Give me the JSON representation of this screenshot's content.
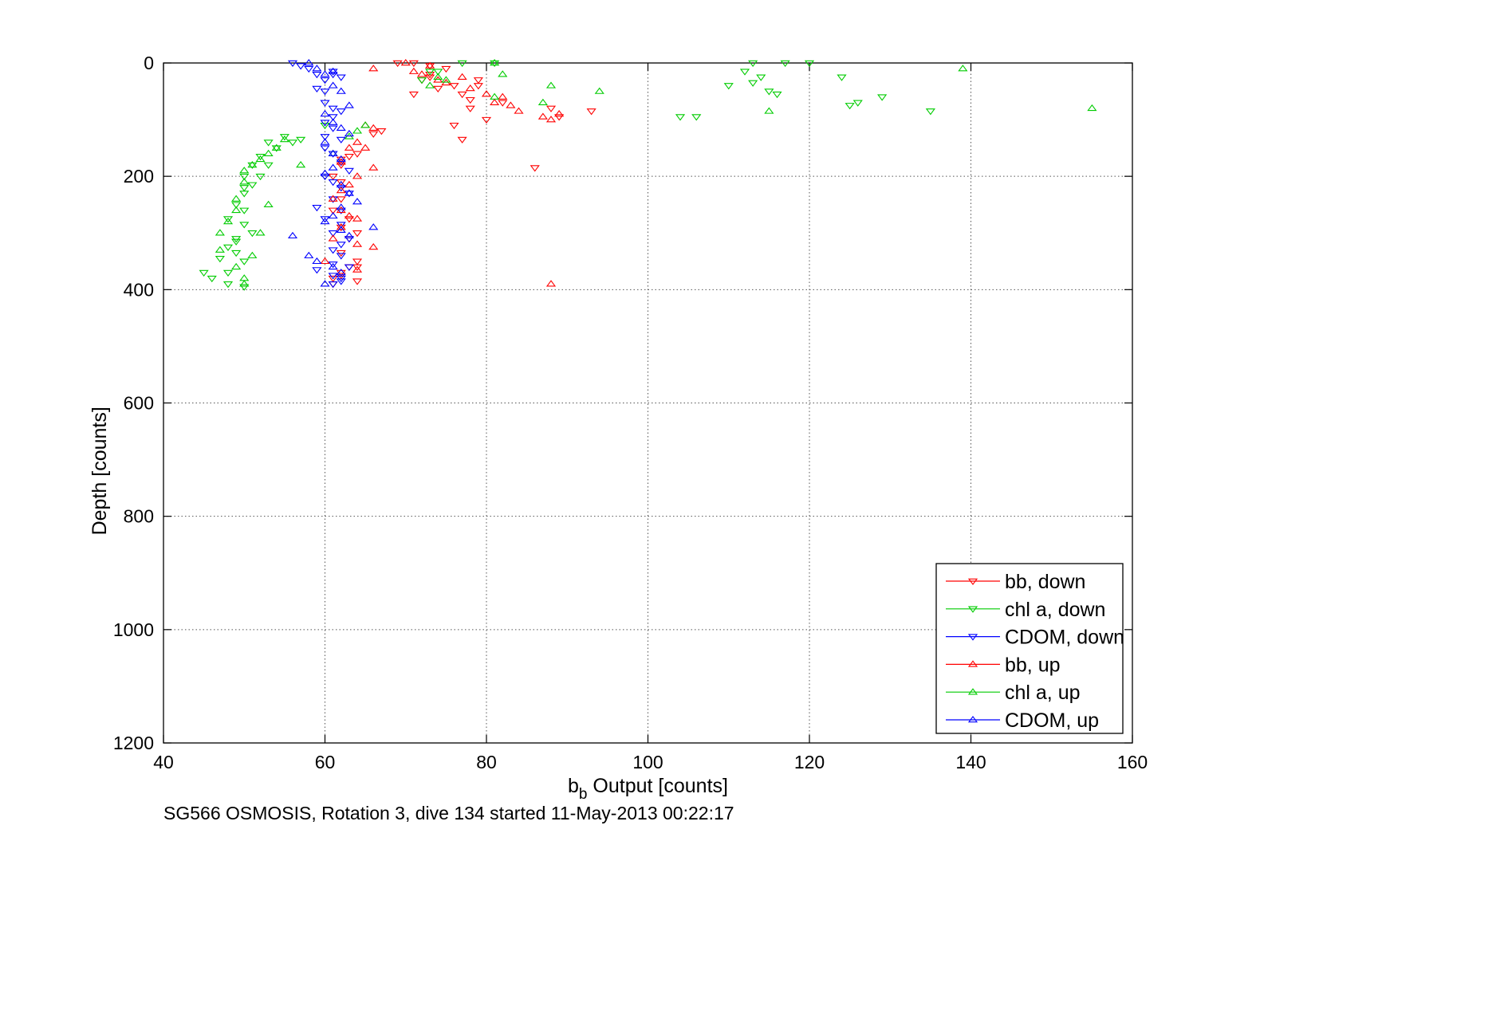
{
  "chart_data": {
    "type": "scatter",
    "xlabel_main": "b",
    "xlabel_sub": "b",
    "xlabel_rest": " Output [counts]",
    "ylabel": "Depth [counts]",
    "caption": "SG566 OSMOSIS, Rotation 3, dive 134 started 11-May-2013 00:22:17",
    "xlim": [
      40,
      160
    ],
    "ylim": [
      0,
      1200
    ],
    "y_reversed": true,
    "grid": true,
    "grid_style": "dotted",
    "legend_position": "bottom-right",
    "xticks": [
      "40",
      "60",
      "80",
      "100",
      "120",
      "140",
      "160"
    ],
    "yticks": [
      "0",
      "200",
      "400",
      "600",
      "800",
      "1000",
      "1200"
    ],
    "series": [
      {
        "name": "bb, down",
        "color": "#ff0000",
        "marker": "triangle-down",
        "x": [
          69,
          71,
          73,
          73,
          75,
          76,
          77,
          78,
          79,
          79,
          80,
          82,
          86,
          88,
          89,
          93,
          72,
          74,
          76,
          71,
          73,
          78,
          77,
          66,
          67,
          64,
          63,
          62,
          62,
          61,
          62,
          62,
          61,
          63,
          62,
          64,
          63,
          62,
          64,
          63,
          62,
          64,
          62,
          61,
          61,
          64
        ],
        "y": [
          0,
          0,
          5,
          20,
          10,
          40,
          55,
          65,
          30,
          40,
          100,
          70,
          185,
          80,
          95,
          85,
          30,
          45,
          110,
          55,
          25,
          80,
          135,
          125,
          120,
          160,
          165,
          170,
          180,
          200,
          210,
          240,
          260,
          275,
          290,
          300,
          310,
          335,
          350,
          360,
          370,
          385,
          375,
          380,
          390,
          360
        ]
      },
      {
        "name": "chl a, down",
        "color": "#00cc00",
        "marker": "triangle-down",
        "x": [
          113,
          117,
          120,
          112,
          113,
          114,
          110,
          115,
          116,
          104,
          106,
          124,
          125,
          126,
          135,
          129,
          81,
          77,
          74,
          73,
          72,
          54,
          53,
          55,
          56,
          57,
          52,
          51,
          50,
          50,
          49,
          48,
          50,
          51,
          49,
          48,
          47,
          49,
          48,
          50,
          45,
          46,
          48,
          50,
          49,
          50,
          50,
          51,
          52,
          53,
          60
        ],
        "y": [
          0,
          0,
          0,
          15,
          35,
          25,
          40,
          50,
          55,
          95,
          95,
          25,
          75,
          70,
          85,
          60,
          0,
          0,
          15,
          15,
          30,
          150,
          140,
          130,
          140,
          135,
          165,
          180,
          200,
          230,
          250,
          275,
          285,
          300,
          315,
          325,
          345,
          335,
          370,
          395,
          370,
          380,
          390,
          350,
          310,
          260,
          220,
          215,
          200,
          180,
          110
        ],
        "note": ""
      },
      {
        "name": "CDOM, down",
        "color": "#0000ff",
        "marker": "triangle-down",
        "x": [
          56,
          57,
          58,
          59,
          60,
          61,
          61,
          62,
          60,
          59,
          60,
          61,
          62,
          61,
          60,
          60,
          61,
          62,
          60,
          61,
          62,
          63,
          60,
          61,
          62,
          63,
          59,
          61,
          62,
          60,
          61,
          62,
          63,
          62,
          61,
          62,
          61,
          63,
          59,
          61,
          62,
          62,
          61
        ],
        "y": [
          0,
          5,
          10,
          20,
          30,
          15,
          20,
          25,
          50,
          45,
          70,
          80,
          85,
          95,
          105,
          130,
          115,
          135,
          150,
          160,
          175,
          190,
          200,
          210,
          220,
          230,
          255,
          240,
          260,
          275,
          300,
          285,
          310,
          320,
          330,
          340,
          355,
          360,
          365,
          375,
          380,
          385,
          390
        ]
      },
      {
        "name": "bb, up",
        "color": "#ff0000",
        "marker": "triangle-up",
        "x": [
          66,
          70,
          71,
          72,
          73,
          74,
          75,
          77,
          78,
          80,
          81,
          82,
          83,
          84,
          87,
          88,
          89,
          65,
          66,
          64,
          63,
          62,
          65,
          66,
          64,
          63,
          62,
          61,
          62,
          63,
          64,
          62,
          61,
          64,
          66,
          60,
          64,
          88
        ],
        "y": [
          10,
          0,
          15,
          20,
          5,
          30,
          35,
          25,
          45,
          55,
          70,
          60,
          75,
          85,
          95,
          100,
          90,
          110,
          115,
          140,
          150,
          175,
          150,
          185,
          200,
          215,
          225,
          240,
          260,
          270,
          275,
          290,
          310,
          320,
          325,
          350,
          365,
          390
        ]
      },
      {
        "name": "chl a, up",
        "color": "#00cc00",
        "marker": "triangle-up",
        "x": [
          81,
          82,
          75,
          73,
          74,
          81,
          87,
          88,
          94,
          115,
          139,
          155,
          55,
          54,
          53,
          52,
          51,
          50,
          50,
          49,
          49,
          48,
          47,
          47,
          49,
          50,
          50,
          51,
          52,
          53,
          57,
          61,
          63,
          64,
          65
        ],
        "y": [
          0,
          20,
          30,
          40,
          25,
          60,
          70,
          40,
          50,
          85,
          10,
          80,
          135,
          150,
          160,
          170,
          180,
          190,
          210,
          240,
          260,
          280,
          300,
          330,
          360,
          380,
          390,
          340,
          300,
          250,
          180,
          160,
          130,
          120,
          110
        ]
      },
      {
        "name": "CDOM, up",
        "color": "#0000ff",
        "marker": "triangle-up",
        "x": [
          58,
          59,
          60,
          61,
          61,
          62,
          63,
          60,
          61,
          62,
          63,
          60,
          61,
          62,
          61,
          60,
          62,
          63,
          64,
          62,
          61,
          60,
          62,
          63,
          66,
          56,
          58,
          59,
          61,
          62,
          60
        ],
        "y": [
          0,
          10,
          20,
          15,
          40,
          50,
          75,
          90,
          105,
          115,
          125,
          140,
          160,
          170,
          185,
          195,
          215,
          230,
          245,
          255,
          270,
          280,
          295,
          305,
          290,
          305,
          340,
          350,
          360,
          370,
          390
        ]
      }
    ]
  }
}
